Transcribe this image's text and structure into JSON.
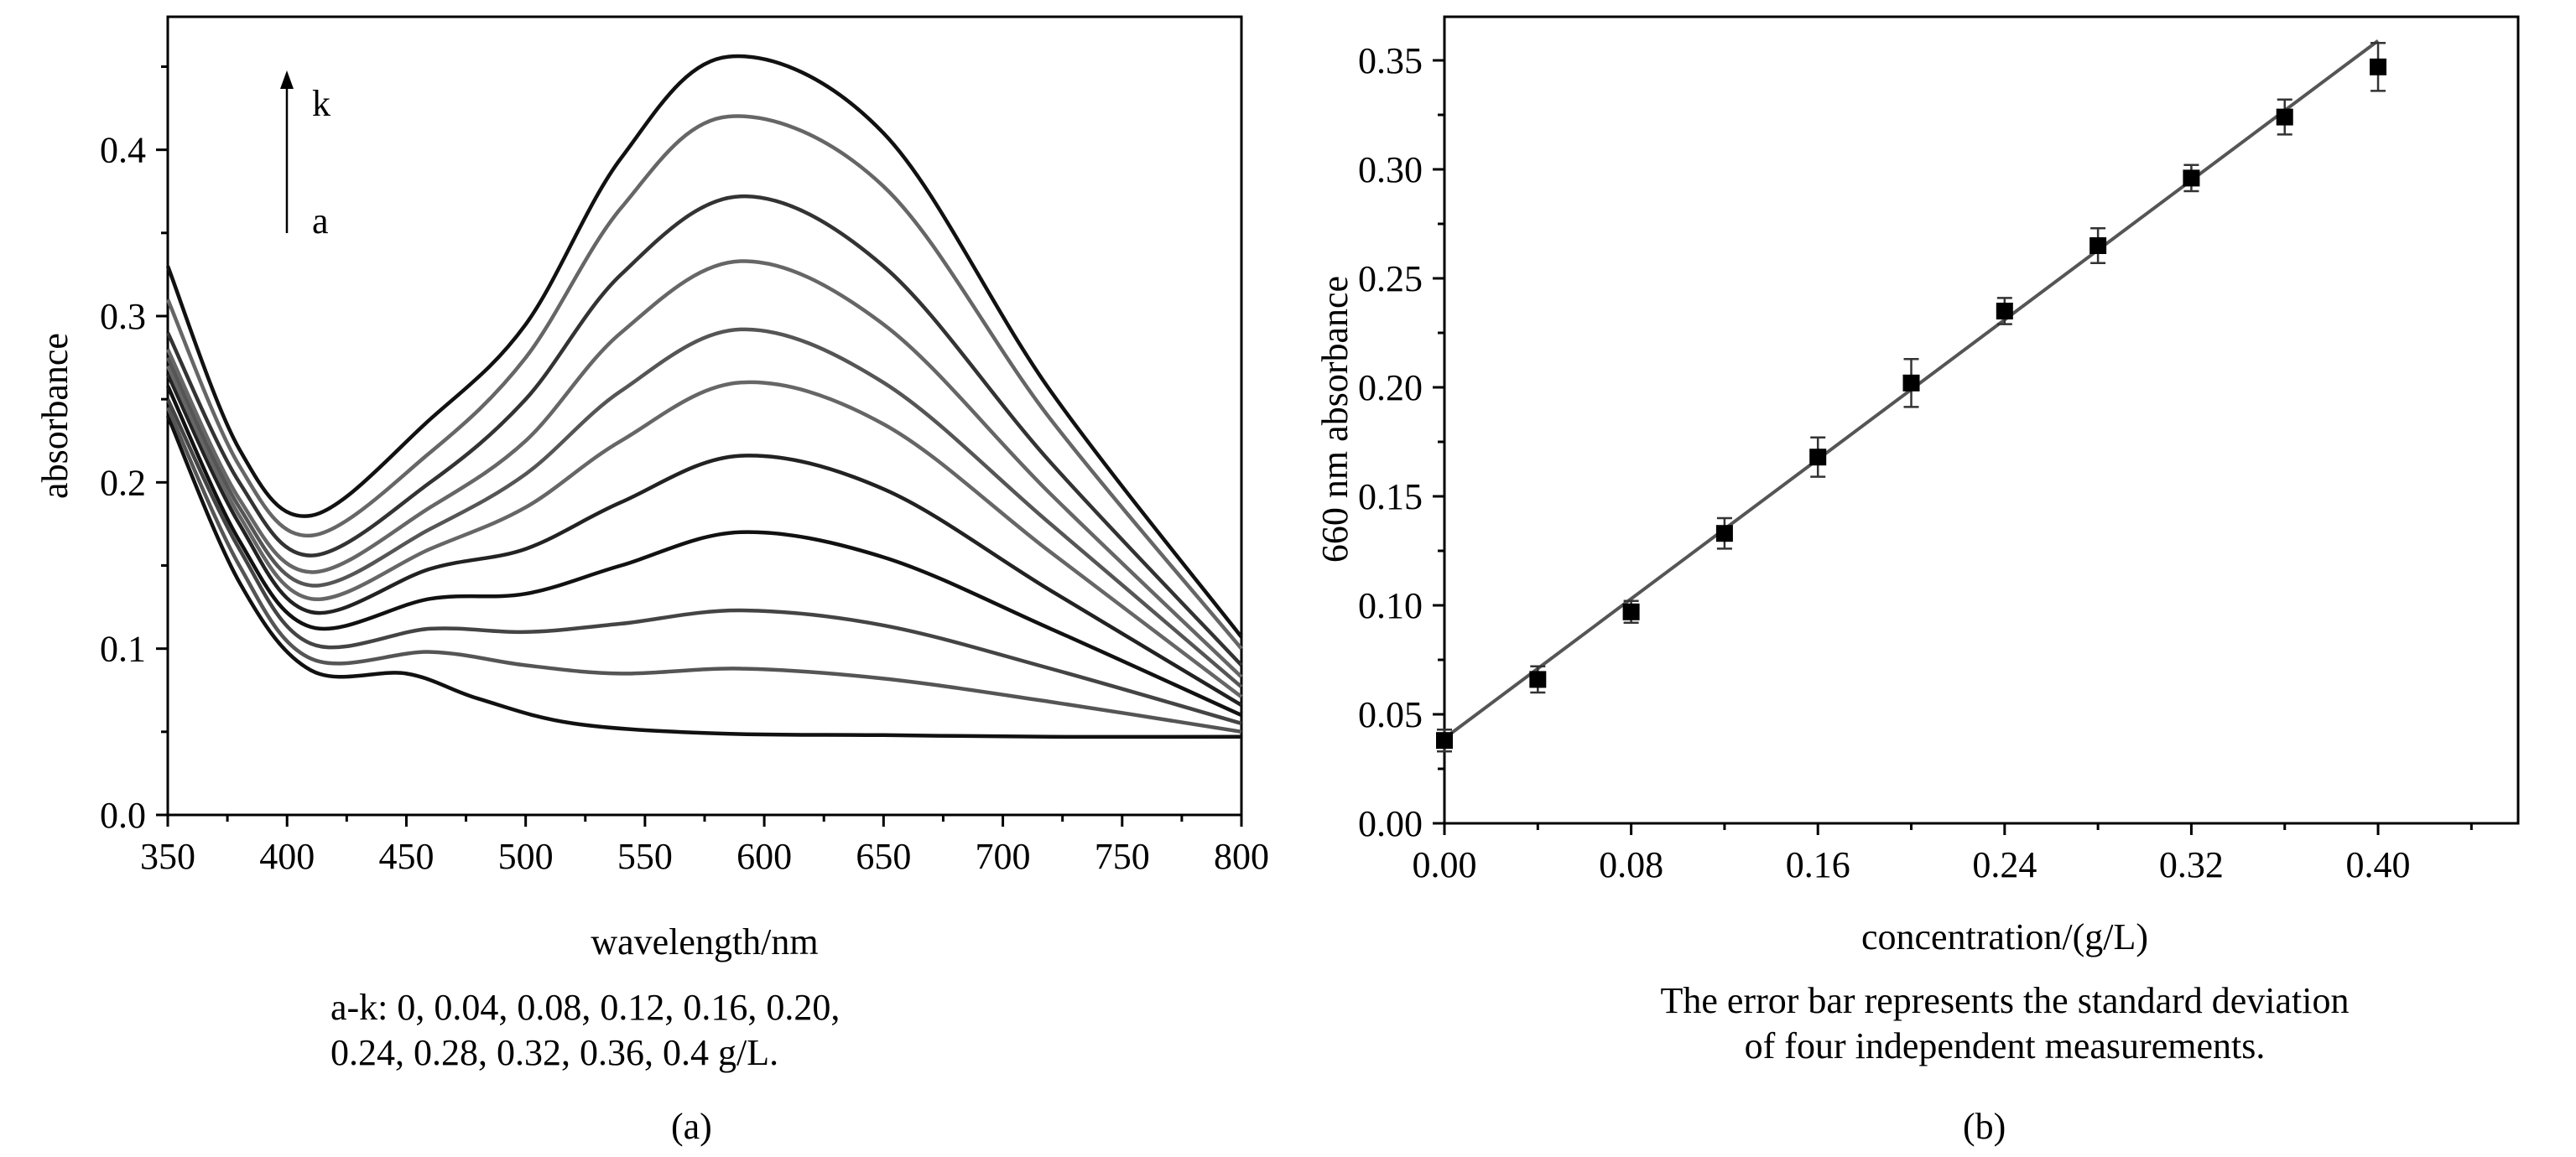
{
  "charts": {
    "a": {
      "chart_data": {
        "type": "line",
        "xlabel": "wavelength/nm",
        "ylabel": "absorbance",
        "xlim": [
          350,
          800
        ],
        "ylim": [
          0,
          0.48
        ],
        "xticks": [
          350,
          400,
          450,
          500,
          550,
          600,
          650,
          700,
          750,
          800
        ],
        "yticks": [
          0.0,
          0.1,
          0.2,
          0.3,
          0.4
        ],
        "ytick_labels": [
          "0.0",
          "0.1",
          "0.2",
          "0.3",
          "0.4"
        ],
        "annotation": {
          "top_label": "k",
          "bottom_label": "a",
          "arrow": "up"
        },
        "legend_note": [
          "a-k: 0, 0.04, 0.08, 0.12, 0.16, 0.20,",
          "0.24, 0.28, 0.32, 0.36, 0.4 g/L."
        ],
        "series": [
          {
            "name": "a",
            "color": "#111111",
            "x": [
              350,
              380,
              410,
              450,
              480,
              520,
              580,
              650,
              720,
              800
            ],
            "values": [
              0.24,
              0.14,
              0.087,
              0.085,
              0.07,
              0.055,
              0.049,
              0.048,
              0.047,
              0.047
            ]
          },
          {
            "name": "b",
            "color": "#555555",
            "x": [
              350,
              380,
              410,
              460,
              500,
              540,
              590,
              650,
              720,
              800
            ],
            "values": [
              0.245,
              0.15,
              0.094,
              0.098,
              0.09,
              0.085,
              0.088,
              0.082,
              0.068,
              0.05
            ]
          },
          {
            "name": "c",
            "color": "#444444",
            "x": [
              350,
              380,
              410,
              460,
              500,
              540,
              590,
              650,
              720,
              800
            ],
            "values": [
              0.25,
              0.16,
              0.103,
              0.112,
              0.11,
              0.115,
              0.123,
              0.114,
              0.088,
              0.055
            ]
          },
          {
            "name": "d",
            "color": "#111111",
            "x": [
              350,
              380,
              410,
              460,
              500,
              540,
              590,
              650,
              720,
              800
            ],
            "values": [
              0.258,
              0.165,
              0.113,
              0.13,
              0.133,
              0.15,
              0.17,
              0.155,
              0.112,
              0.06
            ]
          },
          {
            "name": "e",
            "color": "#222222",
            "x": [
              350,
              380,
              410,
              460,
              500,
              540,
              590,
              650,
              720,
              800
            ],
            "values": [
              0.265,
              0.175,
              0.122,
              0.148,
              0.16,
              0.188,
              0.216,
              0.196,
              0.135,
              0.066
            ]
          },
          {
            "name": "f",
            "color": "#666666",
            "x": [
              350,
              380,
              410,
              460,
              500,
              540,
              590,
              650,
              720,
              800
            ],
            "values": [
              0.27,
              0.18,
              0.13,
              0.16,
              0.185,
              0.225,
              0.26,
              0.235,
              0.158,
              0.071
            ]
          },
          {
            "name": "g",
            "color": "#555555",
            "x": [
              350,
              380,
              410,
              460,
              500,
              540,
              590,
              650,
              720,
              800
            ],
            "values": [
              0.275,
              0.185,
              0.138,
              0.172,
              0.205,
              0.255,
              0.292,
              0.26,
              0.175,
              0.077
            ]
          },
          {
            "name": "h",
            "color": "#666666",
            "x": [
              350,
              380,
              410,
              460,
              500,
              540,
              590,
              650,
              720,
              800
            ],
            "values": [
              0.28,
              0.19,
              0.146,
              0.185,
              0.225,
              0.29,
              0.333,
              0.295,
              0.193,
              0.083
            ]
          },
          {
            "name": "i",
            "color": "#333333",
            "x": [
              350,
              380,
              410,
              460,
              500,
              540,
              590,
              650,
              720,
              800
            ],
            "values": [
              0.29,
              0.2,
              0.156,
              0.2,
              0.25,
              0.325,
              0.372,
              0.33,
              0.212,
              0.09
            ]
          },
          {
            "name": "j",
            "color": "#666666",
            "x": [
              350,
              380,
              410,
              460,
              500,
              540,
              585,
              650,
              720,
              800
            ],
            "values": [
              0.31,
              0.21,
              0.168,
              0.218,
              0.275,
              0.365,
              0.42,
              0.378,
              0.238,
              0.1
            ]
          },
          {
            "name": "k",
            "color": "#111111",
            "x": [
              350,
              380,
              410,
              460,
              500,
              540,
              585,
              650,
              720,
              800
            ],
            "values": [
              0.33,
              0.22,
              0.18,
              0.238,
              0.295,
              0.395,
              0.456,
              0.41,
              0.255,
              0.107
            ]
          }
        ]
      },
      "caption": "(a)"
    },
    "b": {
      "chart_data": {
        "type": "scatter",
        "xlabel": "concentration/(g/L)",
        "ylabel": "660 nm absorbance",
        "xlim": [
          0.0,
          0.46
        ],
        "ylim": [
          0.0,
          0.37
        ],
        "xticks": [
          0.0,
          0.08,
          0.16,
          0.24,
          0.32,
          0.4
        ],
        "xtick_labels": [
          "0.00",
          "0.08",
          "0.16",
          "0.24",
          "0.32",
          "0.40"
        ],
        "yticks": [
          0.0,
          0.05,
          0.1,
          0.15,
          0.2,
          0.25,
          0.3,
          0.35
        ],
        "ytick_labels": [
          "0.00",
          "0.05",
          "0.10",
          "0.15",
          "0.20",
          "0.25",
          "0.30",
          "0.35"
        ],
        "x": [
          0.0,
          0.04,
          0.08,
          0.12,
          0.16,
          0.2,
          0.24,
          0.28,
          0.32,
          0.36,
          0.4
        ],
        "values": [
          0.038,
          0.066,
          0.097,
          0.133,
          0.168,
          0.202,
          0.235,
          0.265,
          0.296,
          0.324,
          0.347
        ],
        "errors": [
          0.005,
          0.006,
          0.005,
          0.007,
          0.009,
          0.011,
          0.006,
          0.008,
          0.006,
          0.008,
          0.011
        ],
        "fit_line": {
          "x": [
            0.0,
            0.4
          ],
          "values": [
            0.039,
            0.359
          ]
        },
        "legend_note": [
          "The error bar represents the standard deviation",
          "of four independent measurements."
        ]
      },
      "caption": "(b)"
    }
  }
}
